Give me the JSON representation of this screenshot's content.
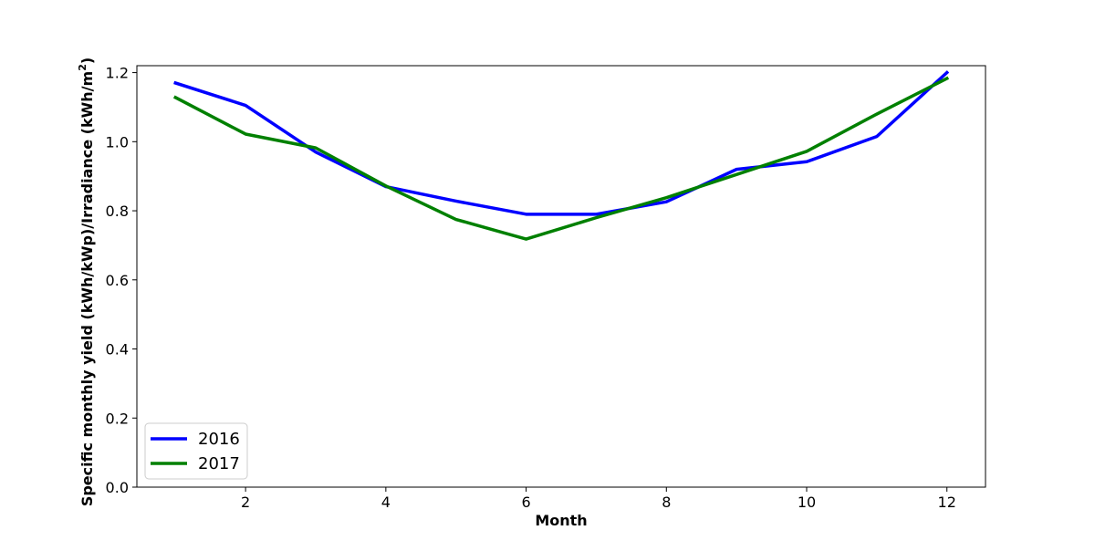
{
  "chart_data": {
    "type": "line",
    "title": "",
    "xlabel": "Month",
    "ylabel_main": "Specific monthly yield (kWh/kWp)/Irradiance (kWh/m",
    "ylabel_superscript": "2",
    "ylabel_close": ")",
    "xlim": [
      0.45,
      12.55
    ],
    "ylim": [
      0.0,
      1.22
    ],
    "xticks": [
      2,
      4,
      6,
      8,
      10,
      12
    ],
    "xtick_labels": [
      "2",
      "4",
      "6",
      "8",
      "10",
      "12"
    ],
    "yticks": [
      0.0,
      0.2,
      0.4,
      0.6,
      0.8,
      1.0,
      1.2
    ],
    "ytick_labels": [
      "0.0",
      "0.2",
      "0.4",
      "0.6",
      "0.8",
      "1.0",
      "1.2"
    ],
    "grid": false,
    "legend_position": "lower-left",
    "x": [
      1,
      2,
      3,
      4,
      5,
      6,
      7,
      8,
      9,
      10,
      11,
      12
    ],
    "series": [
      {
        "name": "2016",
        "color": "#0000ff",
        "values": [
          1.17,
          1.105,
          0.97,
          0.87,
          0.828,
          0.79,
          0.79,
          0.826,
          0.92,
          0.942,
          1.015,
          1.2
        ]
      },
      {
        "name": "2017",
        "color": "#008000",
        "values": [
          1.128,
          1.022,
          0.982,
          0.872,
          0.775,
          0.718,
          0.78,
          0.838,
          0.905,
          0.972,
          1.08,
          1.183
        ]
      }
    ]
  }
}
